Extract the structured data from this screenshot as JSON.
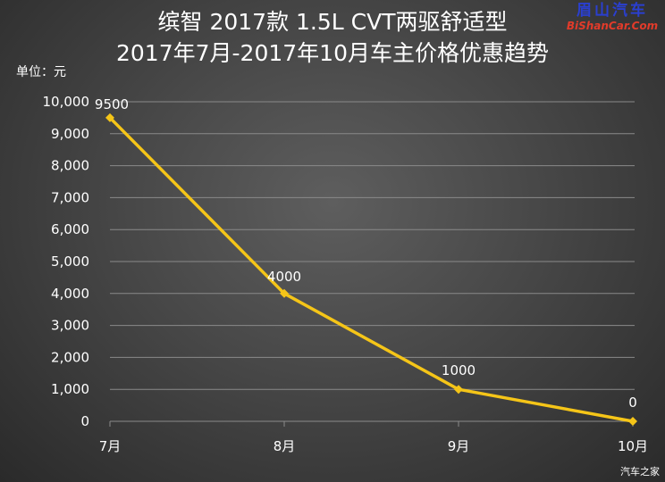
{
  "header": {
    "title_line1": "缤智 2017款 1.5L CVT两驱舒适型",
    "title_line2": "2017年7月-2017年10月车主价格优惠趋势",
    "unit_label": "单位：元"
  },
  "watermark": {
    "cn": "眉山汽车",
    "en": "BiShanCar.Com"
  },
  "source_label": "汽车之家",
  "colors": {
    "line": "#f5c518",
    "grid": "#8a8a8a",
    "text": "#ffffff"
  },
  "chart_data": {
    "type": "line",
    "title": "缤智 2017款 1.5L CVT两驱舒适型 2017年7月-2017年10月车主价格优惠趋势",
    "xlabel": "",
    "ylabel": "单位：元",
    "categories": [
      "7月",
      "8月",
      "9月",
      "10月"
    ],
    "series": [
      {
        "values": [
          9500,
          4000,
          1000,
          0
        ]
      }
    ],
    "data_labels": [
      "9500",
      "4000",
      "1000",
      "0"
    ],
    "ylim": [
      0,
      10000
    ],
    "yticks": [
      0,
      1000,
      2000,
      3000,
      4000,
      5000,
      6000,
      7000,
      8000,
      9000,
      10000
    ],
    "ytick_labels": [
      "0",
      "1,000",
      "2,000",
      "3,000",
      "4,000",
      "5,000",
      "6,000",
      "7,000",
      "8,000",
      "9,000",
      "10,000"
    ],
    "grid": true,
    "legend": "none"
  }
}
